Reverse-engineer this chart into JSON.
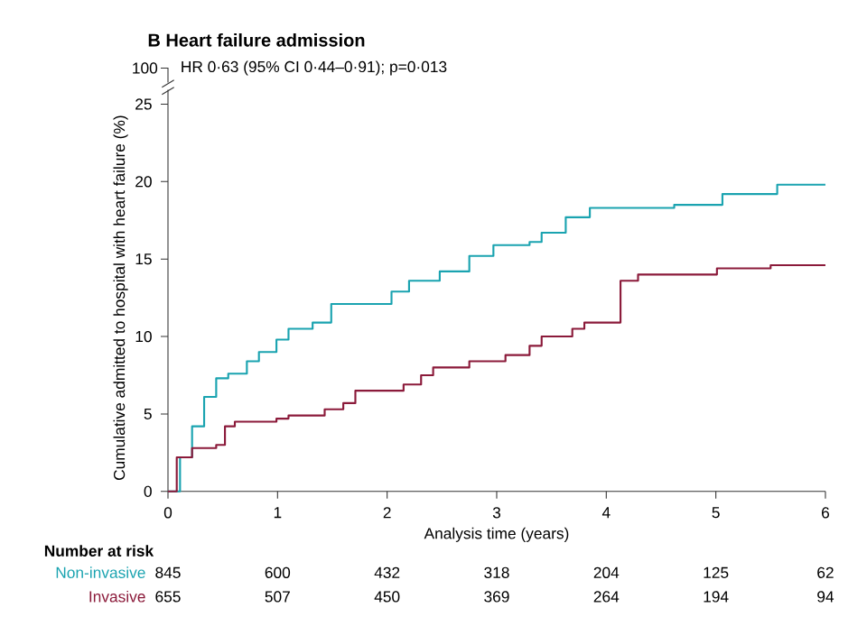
{
  "chart_data": {
    "type": "step",
    "title": "B Heart failure admission",
    "xlabel": "Analysis time (years)",
    "ylabel": "Cumulative admitted to hospital with heart failure (%)",
    "xlim": [
      0,
      6
    ],
    "xticks": [
      0,
      1,
      2,
      3,
      4,
      5,
      6
    ],
    "ylim": [
      0,
      25
    ],
    "yticks": [
      0,
      5,
      10,
      15,
      20,
      25
    ],
    "series": [
      {
        "name": "Non-invasive",
        "color": "#1aa3b0",
        "x": [
          0,
          0.11,
          0.22,
          0.33,
          0.44,
          0.55,
          0.72,
          0.83,
          0.99,
          1.1,
          1.32,
          1.49,
          1.87,
          2.04,
          2.2,
          2.48,
          2.75,
          2.97,
          3.3,
          3.41,
          3.63,
          3.85,
          4.62,
          5.06,
          5.56,
          6.0
        ],
        "values": [
          0,
          2.2,
          4.2,
          6.1,
          7.3,
          7.6,
          8.4,
          9.0,
          9.8,
          10.5,
          10.9,
          12.1,
          12.1,
          12.9,
          13.6,
          14.2,
          15.2,
          15.9,
          16.1,
          16.7,
          17.7,
          18.3,
          18.5,
          19.2,
          19.8,
          19.8
        ]
      },
      {
        "name": "Invasive",
        "color": "#8b1a3a",
        "x": [
          0,
          0.08,
          0.22,
          0.44,
          0.52,
          0.61,
          0.99,
          1.1,
          1.43,
          1.6,
          1.71,
          2.15,
          2.31,
          2.42,
          2.75,
          3.08,
          3.3,
          3.41,
          3.69,
          3.8,
          4.13,
          4.29,
          5.01,
          5.5,
          6.0
        ],
        "values": [
          0,
          2.2,
          2.8,
          3.0,
          4.2,
          4.5,
          4.7,
          4.9,
          5.3,
          5.7,
          6.5,
          6.9,
          7.5,
          8.0,
          8.4,
          8.8,
          9.4,
          10.0,
          10.5,
          10.9,
          13.6,
          14.0,
          14.4,
          14.6,
          14.6
        ]
      }
    ],
    "annotations": [
      "100",
      "HR 0·63 (95% CI 0·44–0·91); p=0·013",
      "Number at risk",
      "845",
      "600",
      "432",
      "318",
      "204",
      "125",
      "62",
      "655",
      "507",
      "450",
      "369",
      "264",
      "194",
      "94"
    ],
    "grid": false,
    "legend": false,
    "marker": "none",
    "line_style": "solid"
  }
}
